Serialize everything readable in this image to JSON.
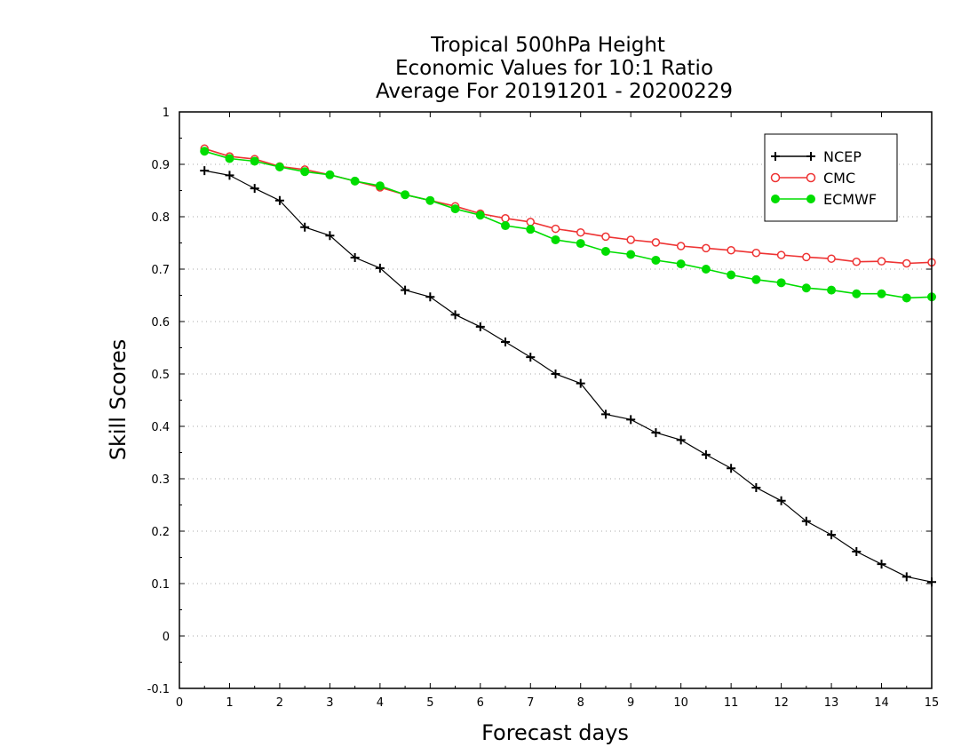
{
  "chart_data": {
    "type": "line",
    "title": [
      "Tropical 500hPa Height",
      "Economic Values for 10:1 Ratio",
      "Average For 20191201 - 20200229"
    ],
    "xlabel": "Forecast days",
    "ylabel": "Skill Scores",
    "xlim": [
      0,
      15
    ],
    "ylim": [
      -0.1,
      1
    ],
    "xticks": [
      0,
      1,
      2,
      3,
      4,
      5,
      6,
      7,
      8,
      9,
      10,
      11,
      12,
      13,
      14,
      15
    ],
    "yticks": [
      -0.1,
      0,
      0.1,
      0.2,
      0.3,
      0.4,
      0.5,
      0.6,
      0.7,
      0.8,
      0.9,
      1
    ],
    "ytick_labels": [
      "-0.1",
      "0",
      "0.1",
      "0.2",
      "0.3",
      "0.4",
      "0.5",
      "0.6",
      "0.7",
      "0.8",
      "0.9",
      "1"
    ],
    "grid": "horizontal-dotted",
    "legend_position": "top-right",
    "x": [
      0.5,
      1,
      1.5,
      2,
      2.5,
      3,
      3.5,
      4,
      4.5,
      5,
      5.5,
      6,
      6.5,
      7,
      7.5,
      8,
      8.5,
      9,
      9.5,
      10,
      10.5,
      11,
      11.5,
      12,
      12.5,
      13,
      13.5,
      14,
      14.5,
      15
    ],
    "series": [
      {
        "name": "NCEP",
        "color": "#000000",
        "marker": "plus",
        "values": [
          0.888,
          0.879,
          0.854,
          0.831,
          0.78,
          0.764,
          0.722,
          0.702,
          0.66,
          0.647,
          0.613,
          0.59,
          0.561,
          0.532,
          0.5,
          0.482,
          0.423,
          0.413,
          0.388,
          0.374,
          0.346,
          0.32,
          0.283,
          0.258,
          0.219,
          0.193,
          0.161,
          0.137,
          0.113,
          0.103
        ]
      },
      {
        "name": "CMC",
        "color": "#ee3333",
        "marker": "open-circle",
        "values": [
          0.93,
          0.915,
          0.91,
          0.896,
          0.89,
          0.88,
          0.868,
          0.856,
          0.842,
          0.831,
          0.82,
          0.806,
          0.797,
          0.79,
          0.777,
          0.77,
          0.762,
          0.756,
          0.751,
          0.744,
          0.74,
          0.736,
          0.731,
          0.727,
          0.723,
          0.72,
          0.714,
          0.715,
          0.711,
          0.713
        ]
      },
      {
        "name": "ECMWF",
        "color": "#00dd00",
        "marker": "filled-circle",
        "values": [
          0.925,
          0.911,
          0.906,
          0.895,
          0.886,
          0.88,
          0.868,
          0.859,
          0.842,
          0.831,
          0.815,
          0.803,
          0.783,
          0.776,
          0.756,
          0.749,
          0.734,
          0.728,
          0.717,
          0.71,
          0.7,
          0.689,
          0.68,
          0.674,
          0.664,
          0.66,
          0.653,
          0.653,
          0.645,
          0.647
        ]
      }
    ]
  }
}
